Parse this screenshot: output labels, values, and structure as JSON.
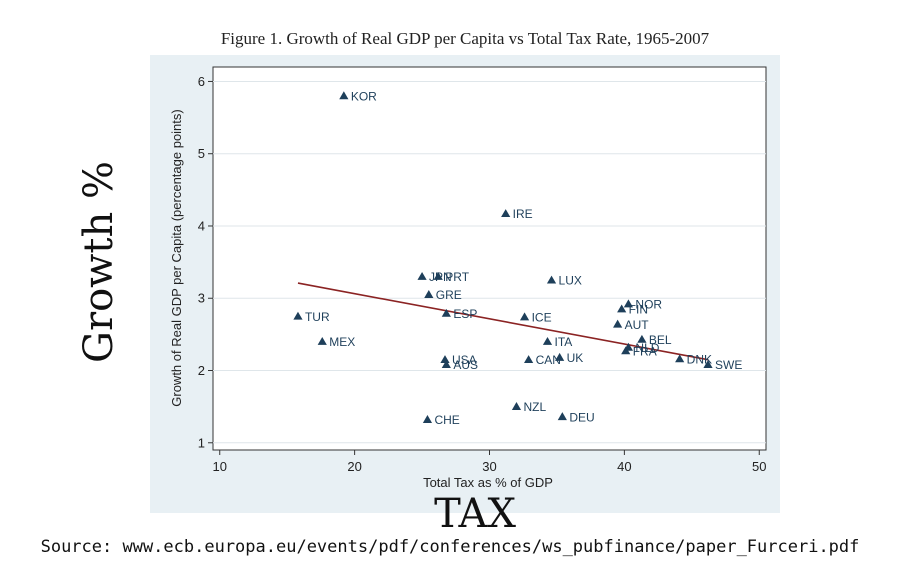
{
  "chart_data": {
    "type": "scatter",
    "title": "Figure 1. Growth of Real GDP per Capita vs Total Tax Rate, 1965-2007",
    "xlabel": "Total Tax as % of GDP",
    "ylabel": "Growth of Real GDP per Capita (percentage points)",
    "xlim": [
      9.5,
      50.5
    ],
    "ylim": [
      0.9,
      6.2
    ],
    "xticks": [
      10,
      20,
      30,
      40,
      50
    ],
    "yticks": [
      1,
      2,
      3,
      4,
      5,
      6
    ],
    "grid": "horizontal",
    "marker": "triangle",
    "marker_color": "#1e3f5a",
    "fit_color": "#8b2323",
    "fit_line": {
      "x": [
        15.8,
        46.2
      ],
      "y": [
        3.21,
        2.15
      ]
    },
    "points": [
      {
        "label": "KOR",
        "x": 19.2,
        "y": 5.8
      },
      {
        "label": "IRE",
        "x": 31.2,
        "y": 4.17
      },
      {
        "label": "JPN",
        "x": 25.0,
        "y": 3.3
      },
      {
        "label": "PRT",
        "x": 26.2,
        "y": 3.3
      },
      {
        "label": "LUX",
        "x": 34.6,
        "y": 3.25
      },
      {
        "label": "GRE",
        "x": 25.5,
        "y": 3.05
      },
      {
        "label": "NOR",
        "x": 40.3,
        "y": 2.92
      },
      {
        "label": "FIN",
        "x": 39.8,
        "y": 2.85
      },
      {
        "label": "TUR",
        "x": 15.8,
        "y": 2.75
      },
      {
        "label": "ESP",
        "x": 26.8,
        "y": 2.79
      },
      {
        "label": "ICE",
        "x": 32.6,
        "y": 2.74
      },
      {
        "label": "AUT",
        "x": 39.5,
        "y": 2.64
      },
      {
        "label": "BEL",
        "x": 41.3,
        "y": 2.43
      },
      {
        "label": "ITA",
        "x": 34.3,
        "y": 2.4
      },
      {
        "label": "MEX",
        "x": 17.6,
        "y": 2.4
      },
      {
        "label": "NLD",
        "x": 40.3,
        "y": 2.32
      },
      {
        "label": "FRA",
        "x": 40.1,
        "y": 2.27
      },
      {
        "label": "UK",
        "x": 35.2,
        "y": 2.18
      },
      {
        "label": "USA",
        "x": 26.7,
        "y": 2.15
      },
      {
        "label": "CAN",
        "x": 32.9,
        "y": 2.15
      },
      {
        "label": "DNK",
        "x": 44.1,
        "y": 2.16
      },
      {
        "label": "SWE",
        "x": 46.2,
        "y": 2.08
      },
      {
        "label": "AUS",
        "x": 26.8,
        "y": 2.08
      },
      {
        "label": "NZL",
        "x": 32.0,
        "y": 1.5
      },
      {
        "label": "DEU",
        "x": 35.4,
        "y": 1.36
      },
      {
        "label": "CHE",
        "x": 25.4,
        "y": 1.32
      }
    ]
  },
  "annotations": {
    "growth_label": "Growth %",
    "tax_label": "TAX",
    "source": "Source: www.ecb.europa.eu/events/pdf/conferences/ws_pubfinance/paper_Furceri.pdf"
  },
  "colors": {
    "panel_bg": "#e8f0f4",
    "plot_bg": "#ffffff",
    "grid": "#dfe6ea"
  }
}
